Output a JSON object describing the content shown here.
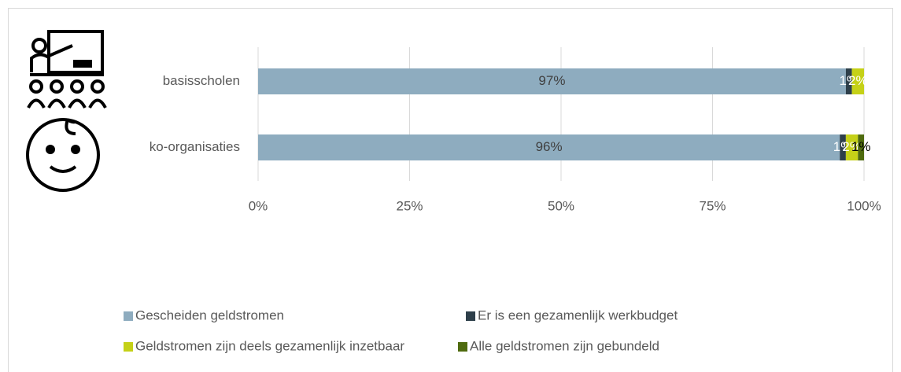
{
  "chart_data": {
    "type": "stacked_barh",
    "categories": [
      "basisscholen",
      "ko-organisaties"
    ],
    "series": [
      {
        "name": "Gescheiden geldstromen",
        "color": "#8eacbf",
        "values": [
          97,
          96
        ],
        "value_labels": [
          "97%",
          "96%"
        ]
      },
      {
        "name": "Er is een gezamenlijk werkbudget",
        "color": "#2e3f4a",
        "values": [
          1,
          1
        ],
        "value_labels": [
          "1%",
          "1%"
        ]
      },
      {
        "name": "Geldstromen zijn deels gezamenlijk inzetbaar",
        "color": "#c5d118",
        "values": [
          2,
          2
        ],
        "value_labels": [
          "2%",
          "2%"
        ]
      },
      {
        "name": "Alle geldstromen zijn gebundeld",
        "color": "#4f6b0f",
        "values": [
          0,
          1
        ],
        "value_labels": [
          null,
          "1%"
        ]
      }
    ],
    "xlim": [
      0,
      100
    ],
    "xticks": [
      {
        "value": 0,
        "label": "0%"
      },
      {
        "value": 25,
        "label": "25%"
      },
      {
        "value": 50,
        "label": "50%"
      },
      {
        "value": 75,
        "label": "75%"
      },
      {
        "value": 100,
        "label": "100%"
      }
    ],
    "grid": true
  }
}
